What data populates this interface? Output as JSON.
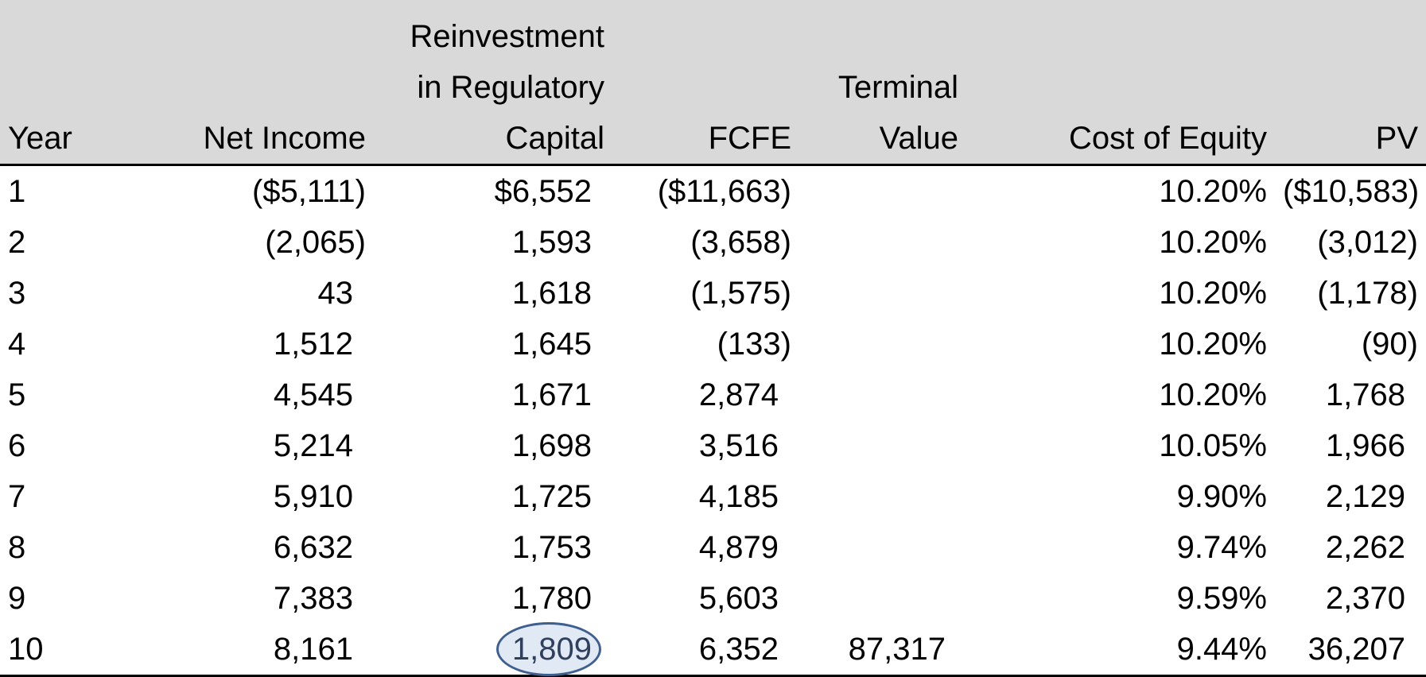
{
  "table": {
    "headers": {
      "year": "Year",
      "net_income": "Net Income",
      "reinvestment": "Reinvestment\nin Regulatory\nCapital",
      "fcfe": "FCFE",
      "terminal_value": "Terminal\nValue",
      "cost_of_equity": "Cost of Equity",
      "pv": "PV"
    },
    "rows": [
      {
        "year": "1",
        "net_income": "($5,111)",
        "reinvestment": "$6,552",
        "fcfe": "($11,663)",
        "terminal_value": "",
        "cost_of_equity": "10.20%",
        "pv": "($10,583)"
      },
      {
        "year": "2",
        "net_income": "(2,065)",
        "reinvestment": "1,593",
        "fcfe": "(3,658)",
        "terminal_value": "",
        "cost_of_equity": "10.20%",
        "pv": "(3,012)"
      },
      {
        "year": "3",
        "net_income": "43",
        "reinvestment": "1,618",
        "fcfe": "(1,575)",
        "terminal_value": "",
        "cost_of_equity": "10.20%",
        "pv": "(1,178)"
      },
      {
        "year": "4",
        "net_income": "1,512",
        "reinvestment": "1,645",
        "fcfe": "(133)",
        "terminal_value": "",
        "cost_of_equity": "10.20%",
        "pv": "(90)"
      },
      {
        "year": "5",
        "net_income": "4,545",
        "reinvestment": "1,671",
        "fcfe": "2,874",
        "terminal_value": "",
        "cost_of_equity": "10.20%",
        "pv": "1,768"
      },
      {
        "year": "6",
        "net_income": "5,214",
        "reinvestment": "1,698",
        "fcfe": "3,516",
        "terminal_value": "",
        "cost_of_equity": "10.05%",
        "pv": "1,966"
      },
      {
        "year": "7",
        "net_income": "5,910",
        "reinvestment": "1,725",
        "fcfe": "4,185",
        "terminal_value": "",
        "cost_of_equity": "9.90%",
        "pv": "2,129"
      },
      {
        "year": "8",
        "net_income": "6,632",
        "reinvestment": "1,753",
        "fcfe": "4,879",
        "terminal_value": "",
        "cost_of_equity": "9.74%",
        "pv": "2,262"
      },
      {
        "year": "9",
        "net_income": "7,383",
        "reinvestment": "1,780",
        "fcfe": "5,603",
        "terminal_value": "",
        "cost_of_equity": "9.59%",
        "pv": "2,370"
      },
      {
        "year": "10",
        "net_income": "8,161",
        "reinvestment": "1,809",
        "fcfe": "6,352",
        "terminal_value": "87,317",
        "cost_of_equity": "9.44%",
        "pv": "36,207"
      }
    ],
    "highlight": {
      "row_index": 9,
      "column": "reinvestment",
      "accent_color": "#3f5f8f"
    }
  },
  "colors": {
    "header_background": "#d9d9d9",
    "text": "#000000",
    "rule": "#000000"
  }
}
